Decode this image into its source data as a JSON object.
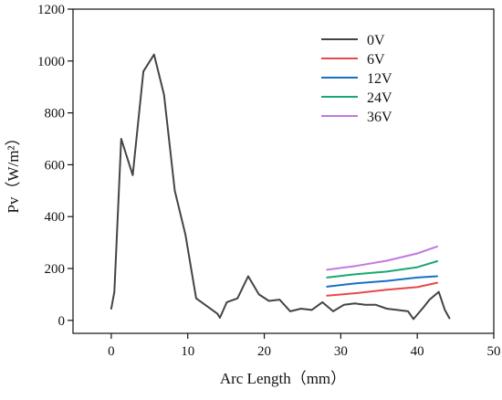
{
  "chart_data": {
    "type": "line",
    "title": "",
    "xlabel": "Arc Length（mm）",
    "ylabel": "Pv（W/m²）",
    "xlim": [
      -5,
      50
    ],
    "ylim": [
      -50,
      1200
    ],
    "x_ticks": [
      "0",
      "10",
      "20",
      "30",
      "40",
      "50"
    ],
    "y_ticks": [
      "0",
      "200",
      "400",
      "600",
      "800",
      "1000",
      "1200"
    ],
    "grid": false,
    "legend_position": "top-right",
    "series": [
      {
        "name": "0V",
        "color": "#444444",
        "points": [
          [
            0,
            45
          ],
          [
            0.4,
            110
          ],
          [
            1.3,
            700
          ],
          [
            2.8,
            560
          ],
          [
            4.2,
            960
          ],
          [
            5.6,
            1025
          ],
          [
            6.9,
            870
          ],
          [
            8.3,
            500
          ],
          [
            9.7,
            330
          ],
          [
            11.1,
            85
          ],
          [
            12.5,
            55
          ],
          [
            13.9,
            25
          ],
          [
            14.2,
            10
          ],
          [
            15.1,
            70
          ],
          [
            16.5,
            85
          ],
          [
            17.9,
            170
          ],
          [
            19.3,
            100
          ],
          [
            20.6,
            75
          ],
          [
            22,
            80
          ],
          [
            23.4,
            35
          ],
          [
            24.8,
            45
          ],
          [
            26.2,
            40
          ],
          [
            27.6,
            70
          ],
          [
            29,
            35
          ],
          [
            30.4,
            60
          ],
          [
            31.8,
            65
          ],
          [
            33.2,
            60
          ],
          [
            34.6,
            60
          ],
          [
            36,
            45
          ],
          [
            37.4,
            40
          ],
          [
            38.8,
            35
          ],
          [
            39.5,
            5
          ],
          [
            40.8,
            50
          ],
          [
            41.6,
            80
          ],
          [
            42.8,
            110
          ],
          [
            43.6,
            40
          ],
          [
            44.2,
            8
          ]
        ]
      },
      {
        "name": "6V",
        "color": "#e8484b",
        "points": [
          [
            28.2,
            95
          ],
          [
            32,
            105
          ],
          [
            36,
            118
          ],
          [
            40,
            128
          ],
          [
            42.6,
            145
          ]
        ]
      },
      {
        "name": "12V",
        "color": "#1a6fc2",
        "points": [
          [
            28.2,
            130
          ],
          [
            32,
            143
          ],
          [
            36,
            152
          ],
          [
            40,
            165
          ],
          [
            42.6,
            170
          ]
        ]
      },
      {
        "name": "24V",
        "color": "#19a872",
        "points": [
          [
            28.2,
            165
          ],
          [
            32,
            178
          ],
          [
            36,
            188
          ],
          [
            40,
            205
          ],
          [
            42.6,
            228
          ]
        ]
      },
      {
        "name": "36V",
        "color": "#c07ae0",
        "points": [
          [
            28.2,
            195
          ],
          [
            32,
            210
          ],
          [
            36,
            230
          ],
          [
            40,
            258
          ],
          [
            42.6,
            285
          ]
        ]
      }
    ]
  }
}
